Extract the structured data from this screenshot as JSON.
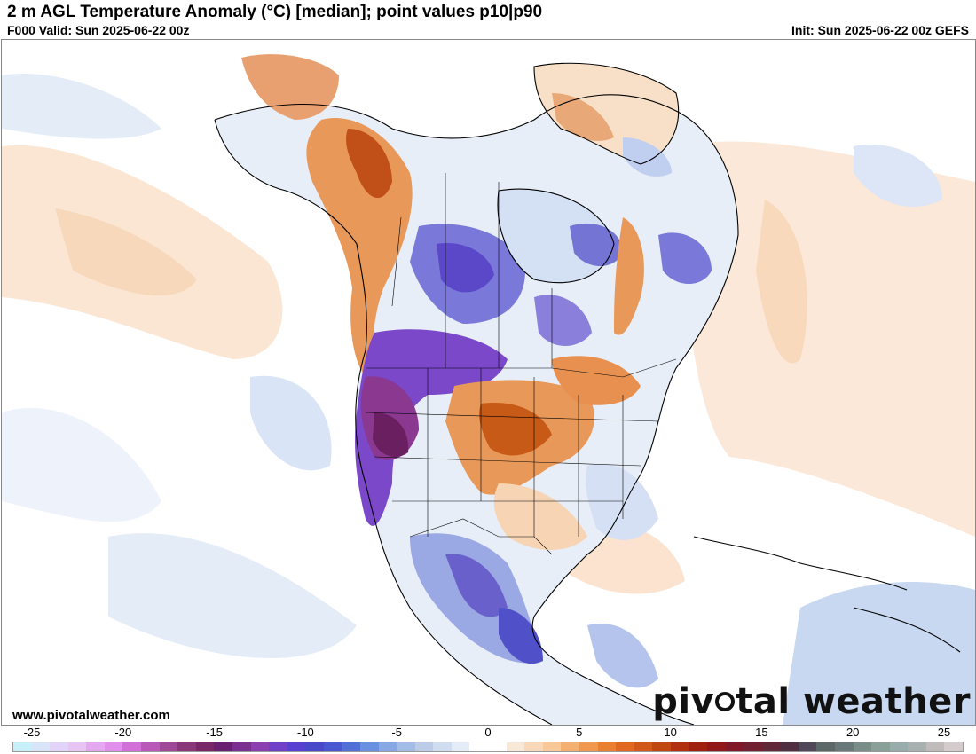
{
  "header": {
    "title": "2 m AGL Temperature Anomaly (°C) [median]; point values p10|p90",
    "valid": "F000 Valid: Sun 2025-06-22 00z",
    "init": "Init: Sun 2025-06-22 00z GEFS"
  },
  "footer": {
    "website": "www.pivotalweather.com",
    "brand_left": "piv",
    "brand_right": "tal weather"
  },
  "colorbar": {
    "ticks": [
      "-25",
      "-20",
      "-15",
      "-10",
      "-5",
      "0",
      "5",
      "10",
      "15",
      "20",
      "25"
    ],
    "colors": [
      "#c8f0f8",
      "#d8e4f8",
      "#e2d4f8",
      "#e8c4f4",
      "#e4a8f0",
      "#e090ec",
      "#d070d8",
      "#b858b8",
      "#a04898",
      "#883878",
      "#782868",
      "#6a2070",
      "#7a3090",
      "#8a40b0",
      "#7040c8",
      "#5840d0",
      "#4848c8",
      "#4858d0",
      "#5070d8",
      "#6890e0",
      "#88a8e4",
      "#a4bce8",
      "#bccce8",
      "#d0dcf0",
      "#e4ecf8",
      "#ffffff",
      "#ffffff",
      "#f8e8d8",
      "#f8d8b8",
      "#f8c898",
      "#f4b070",
      "#f09850",
      "#e88030",
      "#e06820",
      "#d05818",
      "#c04810",
      "#b03010",
      "#a02010",
      "#901818",
      "#801828",
      "#702030",
      "#602838",
      "#503040",
      "#504858",
      "#5c6868",
      "#687878",
      "#788c88",
      "#88a098",
      "#98acac",
      "#a8b0b0",
      "#c0bcbc",
      "#d4cccc"
    ]
  },
  "map": {
    "land_color": "#ffffff",
    "borders_color": "#000000"
  }
}
